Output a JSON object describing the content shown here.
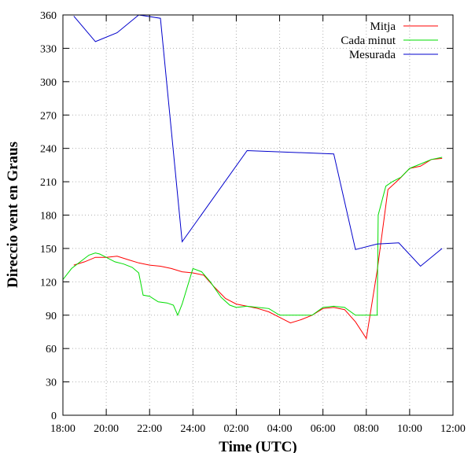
{
  "chart_data": {
    "type": "line",
    "title": "",
    "xlabel": "Time (UTC)",
    "ylabel": "Direccio vent en Graus",
    "xlim": [
      0,
      18
    ],
    "ylim": [
      0,
      360
    ],
    "x_tick_labels": [
      "18:00",
      "20:00",
      "22:00",
      "24:00",
      "02:00",
      "04:00",
      "06:00",
      "08:00",
      "10:00",
      "12:00"
    ],
    "y_ticks": [
      0,
      30,
      60,
      90,
      120,
      150,
      180,
      210,
      240,
      270,
      300,
      330,
      360
    ],
    "grid": true,
    "legend_position": "top-right",
    "series": [
      {
        "name": "Mitja",
        "color": "#ff0000",
        "points": [
          [
            0.5,
            135
          ],
          [
            1.0,
            138
          ],
          [
            1.5,
            142
          ],
          [
            2.0,
            142
          ],
          [
            2.5,
            143
          ],
          [
            3.0,
            140
          ],
          [
            3.5,
            137
          ],
          [
            4.0,
            135
          ],
          [
            4.5,
            134
          ],
          [
            5.0,
            132
          ],
          [
            5.5,
            129
          ],
          [
            6.0,
            128
          ],
          [
            6.5,
            126
          ],
          [
            7.0,
            115
          ],
          [
            7.5,
            105
          ],
          [
            8.0,
            100
          ],
          [
            8.5,
            98
          ],
          [
            9.0,
            96
          ],
          [
            9.5,
            93
          ],
          [
            10.0,
            88
          ],
          [
            10.5,
            83
          ],
          [
            11.0,
            86
          ],
          [
            11.5,
            90
          ],
          [
            12.0,
            96
          ],
          [
            12.5,
            97
          ],
          [
            13.0,
            95
          ],
          [
            13.5,
            84
          ],
          [
            14.0,
            69
          ],
          [
            14.5,
            130
          ],
          [
            15.0,
            203
          ],
          [
            15.5,
            212
          ],
          [
            16.0,
            222
          ],
          [
            16.5,
            224
          ],
          [
            17.0,
            230
          ],
          [
            17.5,
            231
          ]
        ]
      },
      {
        "name": "Cada minut",
        "color": "#00dd00",
        "points": [
          [
            0,
            122
          ],
          [
            0.4,
            132
          ],
          [
            0.8,
            138
          ],
          [
            1.2,
            144
          ],
          [
            1.5,
            146
          ],
          [
            1.7,
            145
          ],
          [
            2.0,
            142
          ],
          [
            2.4,
            138
          ],
          [
            2.8,
            136
          ],
          [
            3.2,
            133
          ],
          [
            3.5,
            128
          ],
          [
            3.7,
            108
          ],
          [
            4.0,
            107
          ],
          [
            4.4,
            102
          ],
          [
            4.8,
            101
          ],
          [
            5.1,
            99
          ],
          [
            5.3,
            90
          ],
          [
            5.5,
            100
          ],
          [
            6.0,
            132
          ],
          [
            6.4,
            129
          ],
          [
            6.8,
            120
          ],
          [
            7.3,
            106
          ],
          [
            7.7,
            99
          ],
          [
            8.0,
            97
          ],
          [
            8.5,
            98
          ],
          [
            9.0,
            97
          ],
          [
            9.5,
            96
          ],
          [
            10.0,
            90
          ],
          [
            10.5,
            90
          ],
          [
            11.0,
            90
          ],
          [
            11.5,
            90
          ],
          [
            12.0,
            97
          ],
          [
            12.5,
            98
          ],
          [
            13.0,
            97
          ],
          [
            13.5,
            90
          ],
          [
            14.0,
            90
          ],
          [
            14.5,
            90
          ],
          [
            14.55,
            180
          ],
          [
            14.9,
            206
          ],
          [
            15.2,
            210
          ],
          [
            15.6,
            214
          ],
          [
            16.0,
            222
          ],
          [
            16.5,
            226
          ],
          [
            17.0,
            230
          ],
          [
            17.5,
            232
          ]
        ]
      },
      {
        "name": "Mesurada",
        "color": "#0000cc",
        "points": [
          [
            0.5,
            359
          ],
          [
            1.5,
            336
          ],
          [
            2.5,
            344
          ],
          [
            3.5,
            360
          ],
          [
            4.5,
            357
          ],
          [
            5.5,
            156
          ],
          [
            8.5,
            238
          ],
          [
            12.5,
            235
          ],
          [
            13.5,
            149
          ],
          [
            14.5,
            154
          ],
          [
            15.5,
            155
          ],
          [
            16.5,
            134
          ],
          [
            17.5,
            150
          ]
        ]
      }
    ]
  }
}
